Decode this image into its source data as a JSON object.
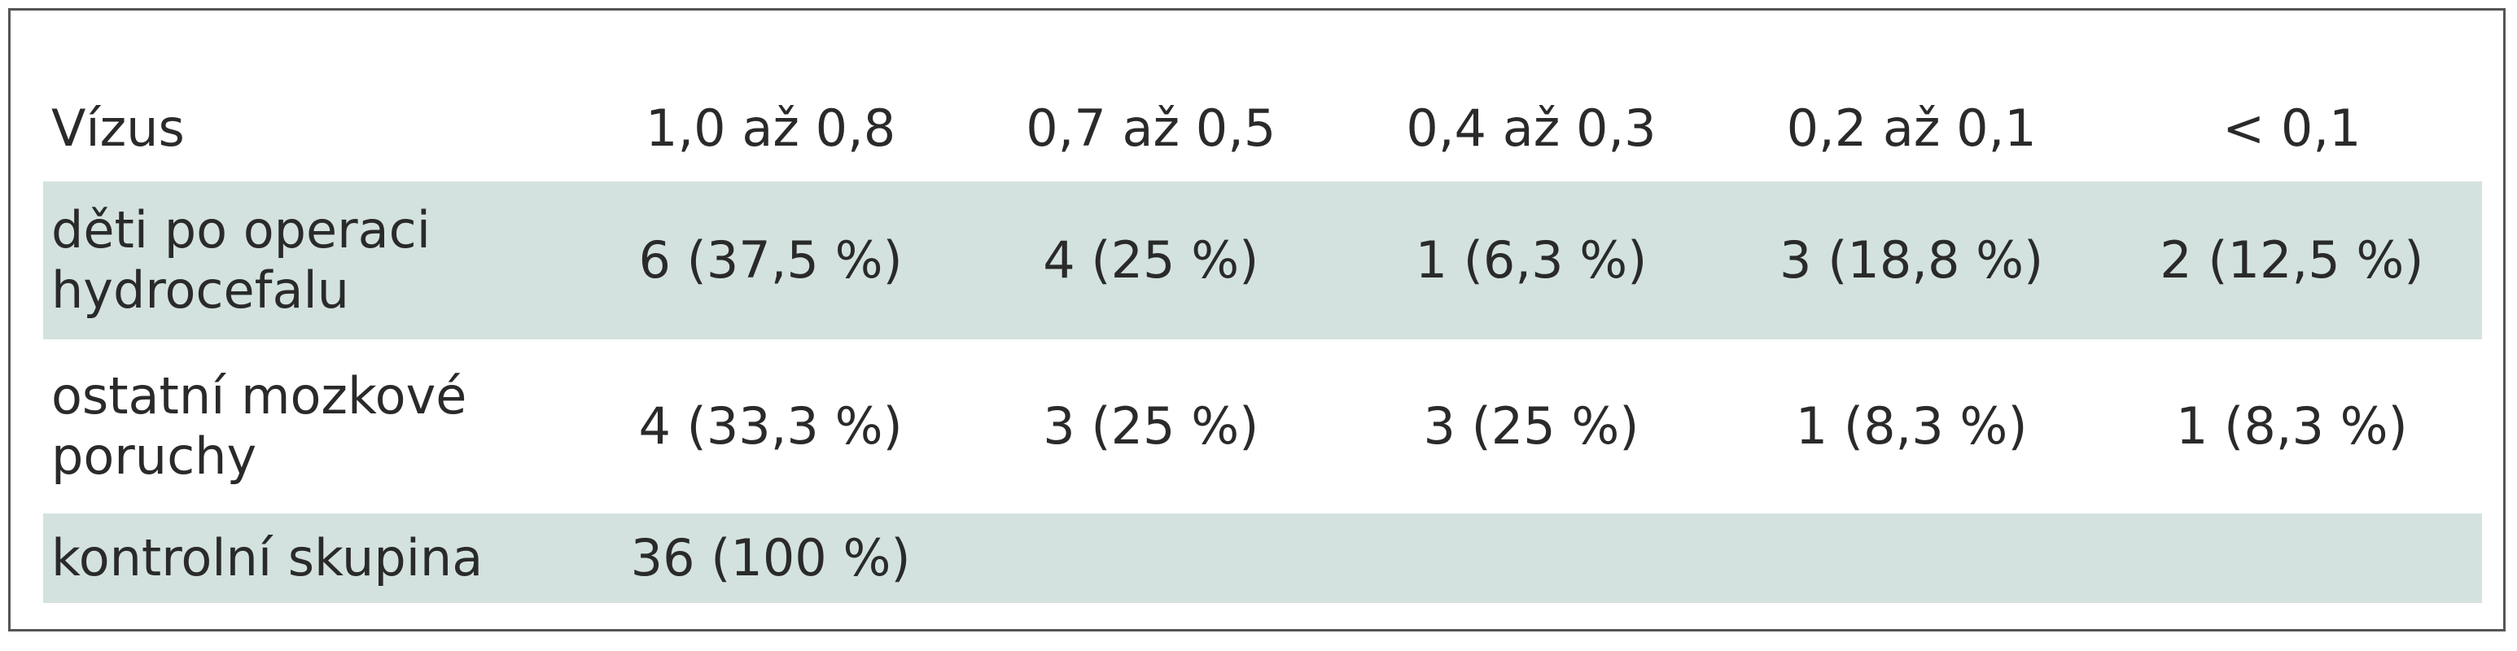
{
  "table": {
    "header": [
      "Vízus",
      "1,0 až 0,8",
      "0,7 až 0,5",
      "0,4 až 0,3",
      "0,2 až 0,1",
      "< 0,1"
    ],
    "rows": [
      [
        "děti po operaci hydrocefalu",
        "6 (37,5 %)",
        "4 (25 %)",
        "1 (6,3 %)",
        "3 (18,8 %)",
        "2 (12,5 %)"
      ],
      [
        "ostatní mozkové poruchy",
        "4 (33,3 %)",
        "3 (25 %)",
        "3 (25 %)",
        "1 (8,3 %)",
        "1 (8,3 %)"
      ],
      [
        "kontrolní skupina",
        "36 (100 %)"
      ]
    ]
  }
}
